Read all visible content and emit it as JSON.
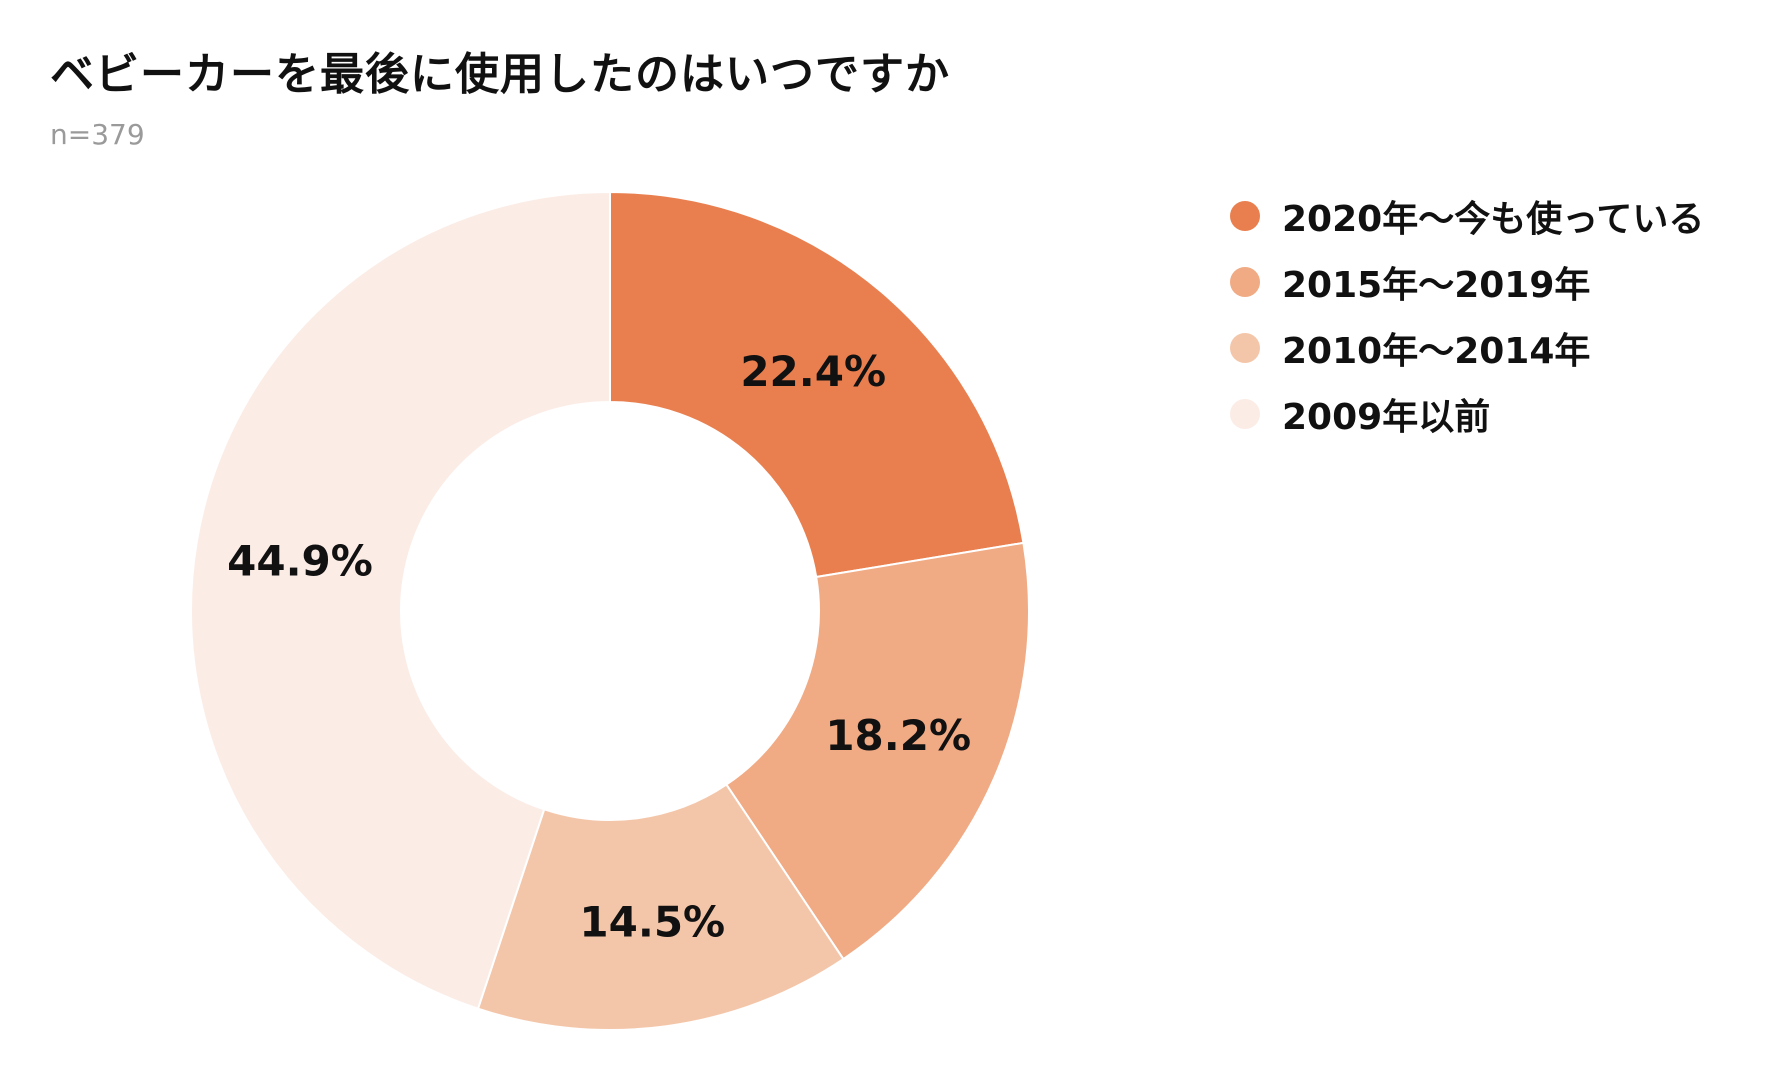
{
  "title": "ベビーカーを最後に使用したのはいつですか",
  "subtitle": "n=379",
  "chart_data": {
    "type": "pie",
    "variant": "donut",
    "categories": [
      "2020年〜今も使っている",
      "2015年〜2019年",
      "2010年〜2014年",
      "2009年以前"
    ],
    "values": [
      22.4,
      18.2,
      14.5,
      44.9
    ],
    "value_labels": [
      "22.4%",
      "18.2%",
      "14.5%",
      "44.9%"
    ],
    "unit": "%",
    "colors": [
      "#e97f4f",
      "#f0aa84",
      "#f4c6a9",
      "#fbece6"
    ],
    "start_angle": "12 o'clock, clockwise",
    "legend_position": "right"
  }
}
